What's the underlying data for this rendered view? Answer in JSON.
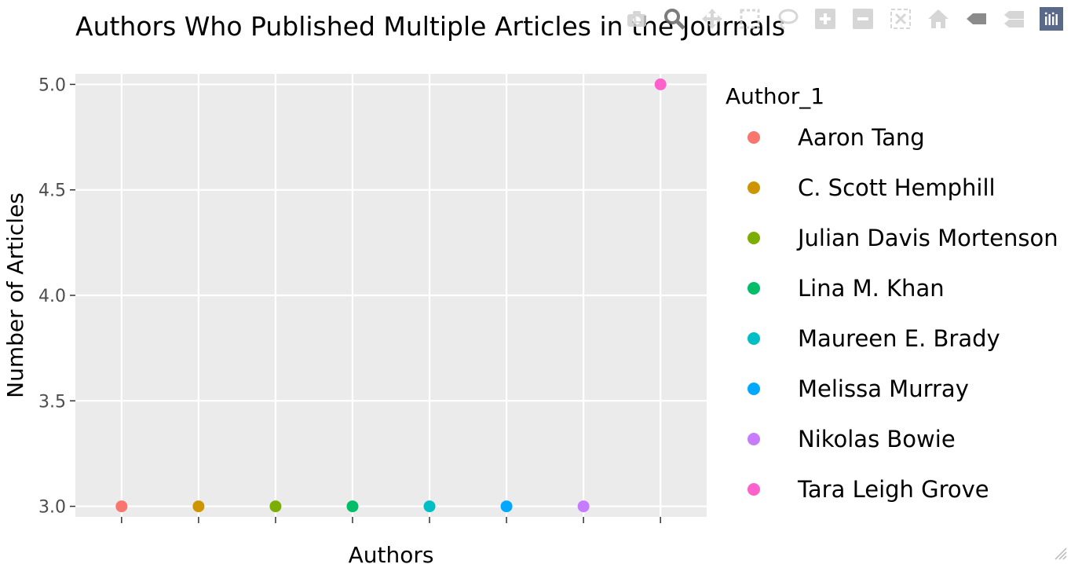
{
  "chart_data": {
    "type": "scatter",
    "title": "Authors Who Published Multiple Articles in the Journals",
    "xlabel": "Authors",
    "ylabel": "Number of Articles",
    "ylim": [
      2.95,
      5.05
    ],
    "yticks": [
      3.0,
      3.5,
      4.0,
      4.5,
      5.0
    ],
    "ytick_labels": [
      "3.0",
      "3.5",
      "4.0",
      "4.5",
      "5.0"
    ],
    "grid": true,
    "legend_title": "Author_1",
    "legend_position": "right",
    "series": [
      {
        "name": "Aaron Tang",
        "x": 1,
        "y": 3,
        "color": "#F8766D"
      },
      {
        "name": "C. Scott Hemphill",
        "x": 2,
        "y": 3,
        "color": "#CD9600"
      },
      {
        "name": "Julian Davis Mortenson",
        "x": 3,
        "y": 3,
        "color": "#7CAE00"
      },
      {
        "name": "Lina M. Khan",
        "x": 4,
        "y": 3,
        "color": "#00BE67"
      },
      {
        "name": "Maureen E. Brady",
        "x": 5,
        "y": 3,
        "color": "#00BFC4"
      },
      {
        "name": "Melissa Murray",
        "x": 6,
        "y": 3,
        "color": "#00A9FF"
      },
      {
        "name": "Nikolas Bowie",
        "x": 7,
        "y": 3,
        "color": "#C77CFF"
      },
      {
        "name": "Tara Leigh Grove",
        "x": 8,
        "y": 5,
        "color": "#FF61CC"
      }
    ]
  },
  "modebar": {
    "buttons": [
      "camera-icon",
      "zoom-icon",
      "pan-icon",
      "box-select-icon",
      "lasso-icon",
      "zoom-in-icon",
      "zoom-out-icon",
      "autoscale-icon",
      "home-icon",
      "spike-lines-icon",
      "compare-hover-icon",
      "plotly-logo-icon"
    ]
  }
}
